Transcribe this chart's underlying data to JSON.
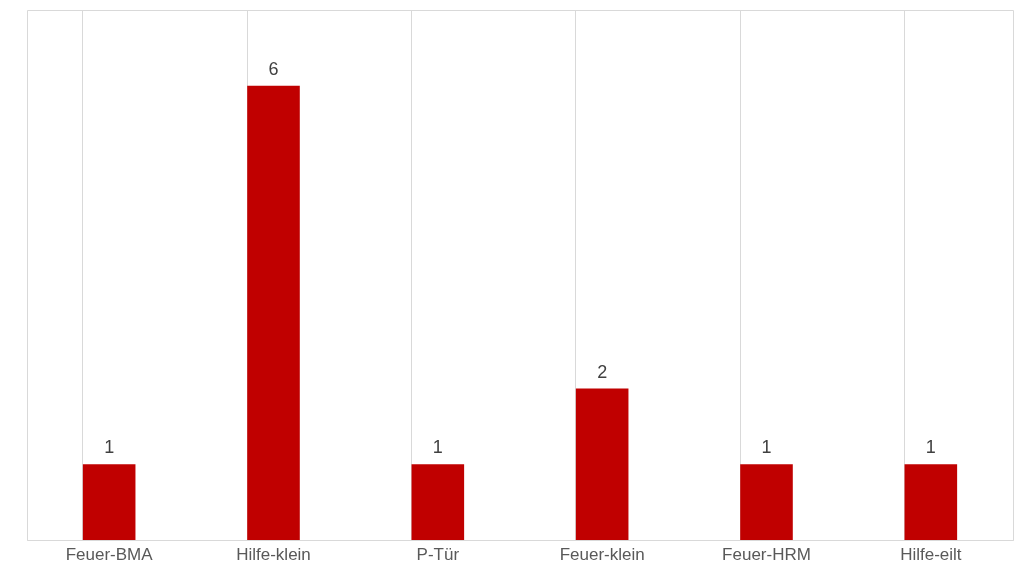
{
  "chart_data": {
    "type": "bar",
    "categories": [
      "Feuer-BMA",
      "Hilfe-klein",
      "P-Tür",
      "Feuer-klein",
      "Feuer-HRM",
      "Hilfe-eilt"
    ],
    "values": [
      1,
      6,
      1,
      2,
      1,
      1
    ],
    "color": "#c00000",
    "data_labels": true,
    "grid": "x"
  }
}
